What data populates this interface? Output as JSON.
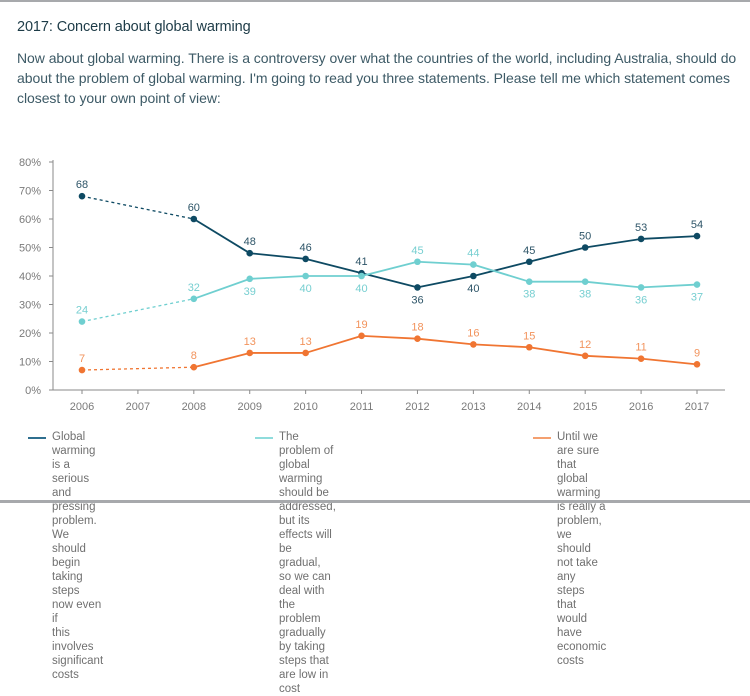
{
  "header": {
    "title": "2017: Concern about global warming",
    "intro": "Now about global warming. There is a controversy over what the countries of the world, including Australia, should do about the problem of global warming. I'm going to read you three statements. Please tell me which statement comes closest to your own point of view:"
  },
  "chart_data": {
    "type": "line",
    "title": "2017: Concern about global warming",
    "xlabel": "",
    "ylabel": "",
    "categories": [
      "2006",
      "2007",
      "2008",
      "2009",
      "2010",
      "2011",
      "2012",
      "2013",
      "2014",
      "2015",
      "2016",
      "2017"
    ],
    "yticks": [
      "0%",
      "10%",
      "20%",
      "30%",
      "40%",
      "50%",
      "60%",
      "70%",
      "80%"
    ],
    "ylim": [
      0,
      80
    ],
    "grid": false,
    "legend_position": "bottom",
    "note": "Segments between 2006 and 2008 are dashed (no 2007 data)",
    "series": [
      {
        "name": "Global warming is a serious and pressing problem. We should begin taking steps now even if this involves significant costs",
        "color": "#0e4a63",
        "label_color": "#2e5568",
        "x": [
          "2006",
          "2008",
          "2009",
          "2010",
          "2011",
          "2012",
          "2013",
          "2014",
          "2015",
          "2016",
          "2017"
        ],
        "values": [
          68,
          60,
          48,
          46,
          41,
          36,
          40,
          45,
          50,
          53,
          54
        ],
        "label_pos": [
          "above",
          "above",
          "above",
          "above",
          "above",
          "below",
          "below",
          "above",
          "above",
          "above",
          "above"
        ]
      },
      {
        "name": "The problem of global warming should be addressed, but its effects will be gradual, so we can deal with the problem gradually by taking steps that are low in cost",
        "color": "#6fcfd0",
        "label_color": "#77cfd1",
        "x": [
          "2006",
          "2008",
          "2009",
          "2010",
          "2011",
          "2012",
          "2013",
          "2014",
          "2015",
          "2016",
          "2017"
        ],
        "values": [
          24,
          32,
          39,
          40,
          40,
          45,
          44,
          38,
          38,
          36,
          37
        ],
        "label_pos": [
          "above",
          "above",
          "below",
          "below",
          "below",
          "above",
          "above",
          "below",
          "below",
          "below",
          "below"
        ]
      },
      {
        "name": "Until we are sure that global warming is really a problem, we should not take any steps that would have economic costs",
        "color": "#f07532",
        "label_color": "#f2935c",
        "x": [
          "2006",
          "2008",
          "2009",
          "2010",
          "2011",
          "2012",
          "2013",
          "2014",
          "2015",
          "2016",
          "2017"
        ],
        "values": [
          7,
          8,
          13,
          13,
          19,
          18,
          16,
          15,
          12,
          11,
          9
        ],
        "label_pos": [
          "above",
          "above",
          "above",
          "above",
          "above",
          "above",
          "above",
          "above",
          "above",
          "above",
          "above"
        ]
      }
    ]
  },
  "legend": {
    "items": [
      {
        "text": "Global warming is a serious and\npressing problem. We should\nbegin taking steps now even if\nthis involves significant costs",
        "color": "#2f6f8f"
      },
      {
        "text": "The problem of global warming should be\naddressed, but its effects will be gradual,\nso we can deal with the problem gradually\nby taking steps that are low in cost",
        "color": "#8fdcdc"
      },
      {
        "text": "Until we are sure that global\nwarming is really a problem,\nwe should not take any steps\nthat would have economic costs",
        "color": "#f4a070"
      }
    ]
  }
}
